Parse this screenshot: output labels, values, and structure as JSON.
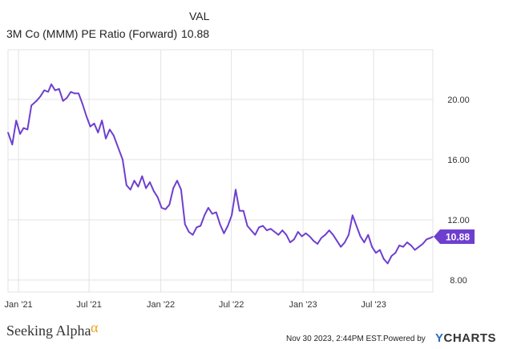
{
  "legend": {
    "column_header": "VAL",
    "series_name": "3M Co (MMM) PE Ratio (Forward)",
    "series_value": "10.88"
  },
  "footer": {
    "brand": "Seeking Alpha",
    "brand_mark": "α",
    "timestamp": "Nov 30 2023, 2:44PM EST.",
    "powered_by": "Powered by",
    "provider_y": "Y",
    "provider_rest": "CHARTS"
  },
  "colors": {
    "series": "#6e3fcf",
    "grid": "#e3e3e3",
    "axis_text": "#333333"
  },
  "chart_data": {
    "type": "line",
    "x_ticks": [
      "Jan '21",
      "Jul '21",
      "Jan '22",
      "Jul '22",
      "Jan '23",
      "Jul '23"
    ],
    "y_ticks": [
      8.0,
      12.0,
      16.0,
      20.0
    ],
    "y_tick_labels": [
      "8.00",
      "12.00",
      "16.00",
      "20.00"
    ],
    "ylim": [
      7.2,
      23.3
    ],
    "xlim": [
      "2020-12-05",
      "2023-11-30"
    ],
    "end_label": "10.88",
    "series": [
      {
        "name": "3M Co (MMM) PE Ratio (Forward)",
        "points": [
          [
            "2020-12-05",
            17.8
          ],
          [
            "2020-12-16",
            17.0
          ],
          [
            "2020-12-26",
            18.6
          ],
          [
            "2021-01-05",
            17.7
          ],
          [
            "2021-01-14",
            18.1
          ],
          [
            "2021-01-24",
            18.0
          ],
          [
            "2021-02-03",
            19.6
          ],
          [
            "2021-02-16",
            19.9
          ],
          [
            "2021-02-26",
            20.2
          ],
          [
            "2021-03-08",
            20.6
          ],
          [
            "2021-03-18",
            20.5
          ],
          [
            "2021-03-26",
            21.0
          ],
          [
            "2021-04-05",
            20.6
          ],
          [
            "2021-04-15",
            20.7
          ],
          [
            "2021-04-25",
            19.9
          ],
          [
            "2021-05-05",
            20.1
          ],
          [
            "2021-05-15",
            20.5
          ],
          [
            "2021-05-25",
            20.4
          ],
          [
            "2021-06-04",
            20.4
          ],
          [
            "2021-06-14",
            19.7
          ],
          [
            "2021-06-24",
            18.9
          ],
          [
            "2021-07-04",
            18.2
          ],
          [
            "2021-07-14",
            18.4
          ],
          [
            "2021-07-24",
            17.8
          ],
          [
            "2021-08-03",
            18.6
          ],
          [
            "2021-08-13",
            17.4
          ],
          [
            "2021-08-23",
            18.0
          ],
          [
            "2021-09-02",
            17.6
          ],
          [
            "2021-09-15",
            16.7
          ],
          [
            "2021-09-25",
            16.0
          ],
          [
            "2021-10-05",
            14.3
          ],
          [
            "2021-10-15",
            14.0
          ],
          [
            "2021-10-25",
            14.6
          ],
          [
            "2021-11-04",
            14.2
          ],
          [
            "2021-11-14",
            14.9
          ],
          [
            "2021-11-24",
            14.1
          ],
          [
            "2021-12-04",
            14.5
          ],
          [
            "2021-12-14",
            13.9
          ],
          [
            "2021-12-24",
            13.5
          ],
          [
            "2022-01-03",
            12.8
          ],
          [
            "2022-01-13",
            12.7
          ],
          [
            "2022-01-23",
            13.0
          ],
          [
            "2022-02-02",
            14.1
          ],
          [
            "2022-02-12",
            14.6
          ],
          [
            "2022-02-22",
            14.0
          ],
          [
            "2022-03-04",
            11.7
          ],
          [
            "2022-03-14",
            11.2
          ],
          [
            "2022-03-24",
            11.0
          ],
          [
            "2022-04-03",
            11.5
          ],
          [
            "2022-04-13",
            11.6
          ],
          [
            "2022-04-23",
            12.3
          ],
          [
            "2022-05-03",
            12.8
          ],
          [
            "2022-05-13",
            12.4
          ],
          [
            "2022-05-23",
            12.5
          ],
          [
            "2022-06-02",
            11.7
          ],
          [
            "2022-06-12",
            11.1
          ],
          [
            "2022-06-22",
            11.6
          ],
          [
            "2022-07-02",
            12.3
          ],
          [
            "2022-07-12",
            14.0
          ],
          [
            "2022-07-22",
            12.6
          ],
          [
            "2022-08-01",
            12.6
          ],
          [
            "2022-08-11",
            11.6
          ],
          [
            "2022-08-21",
            11.3
          ],
          [
            "2022-08-31",
            11.0
          ],
          [
            "2022-09-10",
            11.5
          ],
          [
            "2022-09-20",
            11.6
          ],
          [
            "2022-09-30",
            11.3
          ],
          [
            "2022-10-10",
            11.4
          ],
          [
            "2022-10-20",
            11.2
          ],
          [
            "2022-10-30",
            11.0
          ],
          [
            "2022-11-09",
            11.3
          ],
          [
            "2022-11-19",
            11.0
          ],
          [
            "2022-11-29",
            10.5
          ],
          [
            "2022-12-09",
            10.7
          ],
          [
            "2022-12-19",
            11.2
          ],
          [
            "2022-12-29",
            10.9
          ],
          [
            "2023-01-08",
            11.1
          ],
          [
            "2023-01-18",
            10.9
          ],
          [
            "2023-01-28",
            10.6
          ],
          [
            "2023-02-07",
            10.4
          ],
          [
            "2023-02-17",
            10.8
          ],
          [
            "2023-02-27",
            11.0
          ],
          [
            "2023-03-09",
            11.3
          ],
          [
            "2023-03-19",
            11.0
          ],
          [
            "2023-03-29",
            10.6
          ],
          [
            "2023-04-08",
            10.2
          ],
          [
            "2023-04-18",
            10.5
          ],
          [
            "2023-04-28",
            11.0
          ],
          [
            "2023-05-08",
            12.3
          ],
          [
            "2023-05-18",
            11.6
          ],
          [
            "2023-05-28",
            10.9
          ],
          [
            "2023-06-07",
            10.5
          ],
          [
            "2023-06-17",
            11.0
          ],
          [
            "2023-06-27",
            10.2
          ],
          [
            "2023-07-07",
            9.8
          ],
          [
            "2023-07-17",
            10.0
          ],
          [
            "2023-07-27",
            9.4
          ],
          [
            "2023-08-06",
            9.1
          ],
          [
            "2023-08-16",
            9.6
          ],
          [
            "2023-08-26",
            9.8
          ],
          [
            "2023-09-05",
            10.3
          ],
          [
            "2023-09-15",
            10.2
          ],
          [
            "2023-09-25",
            10.5
          ],
          [
            "2023-10-05",
            10.3
          ],
          [
            "2023-10-15",
            10.0
          ],
          [
            "2023-10-25",
            10.2
          ],
          [
            "2023-11-04",
            10.4
          ],
          [
            "2023-11-14",
            10.7
          ],
          [
            "2023-11-24",
            10.8
          ],
          [
            "2023-11-30",
            10.88
          ]
        ]
      }
    ]
  }
}
